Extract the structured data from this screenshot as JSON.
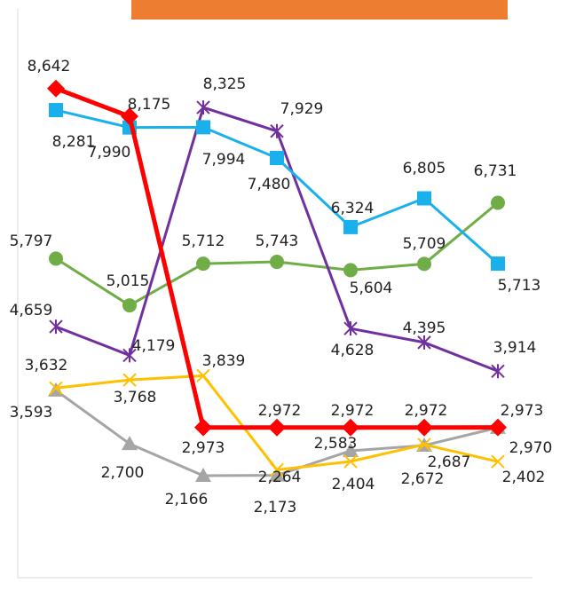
{
  "chart_data": {
    "type": "line",
    "categories": [
      null,
      null,
      null,
      null,
      null,
      null,
      null
    ],
    "ylim": [
      0,
      9000
    ],
    "series": [
      {
        "color": "#ff0000",
        "marker": "diamond",
        "label_color": "#ff0000",
        "values": [
          8642,
          8175,
          2973,
          2972,
          2972,
          2972,
          2973
        ],
        "value_labels": [
          "8,642",
          "8,175",
          "2,973",
          "2,972",
          "2,972",
          "2,972",
          "2,973"
        ]
      },
      {
        "color": "#1ab0ec",
        "marker": "square",
        "values": [
          8281,
          7990,
          7994,
          7480,
          6324,
          6805,
          5713
        ],
        "value_labels": [
          "8,281",
          "7,990",
          "7,994",
          "7,480",
          "6,324",
          "6,805",
          "5,713"
        ]
      },
      {
        "color": "#7030a0",
        "marker": "star",
        "values": [
          4659,
          4179,
          8325,
          7929,
          4628,
          4395,
          3914
        ],
        "value_labels": [
          "4,659",
          "4,179",
          "8,325",
          "7,929",
          "4,628",
          "4,395",
          "3,914"
        ]
      },
      {
        "color": "#70ad47",
        "marker": "circle",
        "values": [
          5797,
          5015,
          5712,
          5743,
          5604,
          5709,
          6731
        ],
        "value_labels": [
          "5,797",
          "5,015",
          "5,712",
          "5,743",
          "5,604",
          "5,709",
          "6,731"
        ]
      },
      {
        "color": "#ffc000",
        "marker": "x",
        "values": [
          3632,
          3768,
          3839,
          2264,
          2404,
          2687,
          2402
        ],
        "value_labels": [
          "3,632",
          "3,768",
          "3,839",
          "2,264",
          "2,404",
          "2,687",
          "2,402"
        ]
      },
      {
        "color": "#a5a5a5",
        "marker": "triangle",
        "values": [
          3593,
          2700,
          2166,
          2173,
          2583,
          2672,
          2970
        ],
        "value_labels": [
          "3,593",
          "2,700",
          "2,166",
          "2,173",
          "2,583",
          "2,672",
          "2,970"
        ]
      }
    ]
  }
}
